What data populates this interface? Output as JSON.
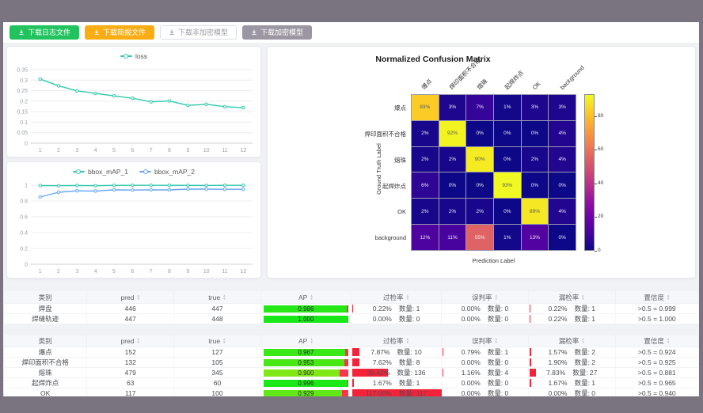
{
  "toolbar": {
    "buttons": [
      {
        "label": "下载日志文件",
        "style": "green"
      },
      {
        "label": "下载简报文件",
        "style": "orange"
      },
      {
        "label": "下载非加密模型",
        "style": "plain"
      },
      {
        "label": "下载加密模型",
        "style": "gray"
      }
    ]
  },
  "colors": {
    "frame": "#7a7481",
    "teal_series": "#30c9ac",
    "blue_series": "#64a6f4",
    "green_button": "#22c35e",
    "orange_button": "#f9ad13",
    "red_bar": "#f5233a"
  },
  "charts": {
    "loss": {
      "type": "line",
      "x": [
        "1",
        "2",
        "3",
        "4",
        "5",
        "6",
        "7",
        "8",
        "9",
        "10",
        "11",
        "12"
      ],
      "yticks": [
        0,
        0.05,
        0.1,
        0.15,
        0.2,
        0.25,
        0.3,
        0.35
      ],
      "ymax": 0.35,
      "series": [
        {
          "name": "loss",
          "color": "#30c9ac",
          "values": [
            0.305,
            0.273,
            0.249,
            0.237,
            0.225,
            0.214,
            0.197,
            0.201,
            0.18,
            0.185,
            0.174,
            0.169
          ]
        }
      ]
    },
    "map": {
      "type": "line",
      "x": [
        "1",
        "2",
        "3",
        "4",
        "5",
        "6",
        "7",
        "8",
        "9",
        "10",
        "11",
        "12"
      ],
      "yticks": [
        0,
        0.2,
        0.4,
        0.6,
        0.8,
        1
      ],
      "ymax": 1,
      "series": [
        {
          "name": "bbox_mAP_1",
          "color": "#30c9ac",
          "values": [
            0.995,
            0.993,
            0.996,
            0.993,
            0.997,
            0.998,
            0.998,
            0.998,
            0.997,
            0.996,
            0.998,
            0.998
          ]
        },
        {
          "name": "bbox_mAP_2",
          "color": "#64a6f4",
          "values": [
            0.85,
            0.91,
            0.928,
            0.925,
            0.94,
            0.938,
            0.94,
            0.94,
            0.95,
            0.95,
            0.948,
            0.948
          ]
        }
      ]
    },
    "confusion": {
      "type": "heatmap",
      "title": "Normalized Confusion Matrix",
      "xlabel": "Prediction Label",
      "ylabel": "Ground Truth Label",
      "labels": [
        "爆点",
        "焊印面积不合格",
        "熔珠",
        "起焊炸点",
        "OK",
        "background"
      ],
      "unit": "%",
      "vmax": 93,
      "colorbar_ticks": [
        0,
        20,
        40,
        60,
        80
      ],
      "rows": [
        [
          83,
          3,
          7,
          1,
          3,
          3
        ],
        [
          2,
          92,
          0,
          0,
          0,
          4
        ],
        [
          2,
          2,
          90,
          0,
          2,
          4
        ],
        [
          6,
          0,
          0,
          93,
          0,
          0
        ],
        [
          2,
          2,
          2,
          0,
          89,
          4
        ],
        [
          12,
          11,
          55,
          1,
          13,
          0
        ]
      ]
    }
  },
  "tables": {
    "columns": [
      {
        "label": "类别",
        "key": "name",
        "sortable": false
      },
      {
        "label": "pred",
        "key": "pred",
        "sortable": true
      },
      {
        "label": "true",
        "key": "true",
        "sortable": true
      },
      {
        "label": "AP",
        "key": "ap",
        "sortable": true
      },
      {
        "label": "过检率",
        "key": "over",
        "sortable": true
      },
      {
        "label": "误判率",
        "key": "mis",
        "sortable": true
      },
      {
        "label": "漏检率",
        "key": "miss",
        "sortable": true
      },
      {
        "label": "置信度",
        "key": "conf",
        "sortable": true
      }
    ],
    "table1": {
      "rows": [
        {
          "name": "焊盘",
          "pred": "446",
          "true": "447",
          "ap": 0.986,
          "ap_label": "0.986",
          "over": {
            "pct": "0.22%",
            "num": "数量: 1",
            "val": 0.22
          },
          "mis": {
            "pct": "0.00%",
            "num": "数量: 0",
            "val": 0
          },
          "miss": {
            "pct": "0.22%",
            "num": "数量: 1",
            "val": 0.22
          },
          "conf": ">0.5 = 0.999"
        },
        {
          "name": "焊缝轨迹",
          "pred": "447",
          "true": "448",
          "ap": 1.0,
          "ap_label": "1.000",
          "over": {
            "pct": "0.00%",
            "num": "数量: 0",
            "val": 0
          },
          "mis": {
            "pct": "0.00%",
            "num": "数量: 0",
            "val": 0
          },
          "miss": {
            "pct": "0.22%",
            "num": "数量: 1",
            "val": 0.22
          },
          "conf": ">0.5 = 1.000"
        }
      ]
    },
    "table2": {
      "rows": [
        {
          "name": "爆点",
          "pred": "152",
          "true": "127",
          "ap": 0.967,
          "ap_label": "0.967",
          "over": {
            "pct": "7.87%",
            "num": "数量: 10",
            "val": 7.87
          },
          "mis": {
            "pct": "0.79%",
            "num": "数量: 1",
            "val": 0.79
          },
          "miss": {
            "pct": "1.57%",
            "num": "数量: 2",
            "val": 1.57
          },
          "conf": ">0.5 = 0.924"
        },
        {
          "name": "焊印面积不合格",
          "pred": "132",
          "true": "105",
          "ap": 0.953,
          "ap_label": "0.953",
          "over": {
            "pct": "7.62%",
            "num": "数量: 8",
            "val": 7.62
          },
          "mis": {
            "pct": "0.00%",
            "num": "数量: 0",
            "val": 0
          },
          "miss": {
            "pct": "1.90%",
            "num": "数量: 2",
            "val": 1.9
          },
          "conf": ">0.5 = 0.925"
        },
        {
          "name": "熔珠",
          "pred": "479",
          "true": "345",
          "ap": 0.9,
          "ap_label": "0.900",
          "over": {
            "pct": "39.42%",
            "num": "数量: 136",
            "val": 39.42
          },
          "mis": {
            "pct": "1.16%",
            "num": "数量: 4",
            "val": 1.16
          },
          "miss": {
            "pct": "7.83%",
            "num": "数量: 27",
            "val": 7.83
          },
          "conf": ">0.5 = 0.881"
        },
        {
          "name": "起焊炸点",
          "pred": "63",
          "true": "60",
          "ap": 0.996,
          "ap_label": "0.996",
          "over": {
            "pct": "1.67%",
            "num": "数量: 1",
            "val": 1.67
          },
          "mis": {
            "pct": "0.00%",
            "num": "数量: 0",
            "val": 0
          },
          "miss": {
            "pct": "1.67%",
            "num": "数量: 1",
            "val": 1.67
          },
          "conf": ">0.5 = 0.965"
        },
        {
          "name": "OK",
          "pred": "117",
          "true": "100",
          "ap": 0.929,
          "ap_label": "0.929",
          "over": {
            "pct": "117.00%",
            "num": "数量: 117",
            "val": 117
          },
          "mis": {
            "pct": "0.00%",
            "num": "数量: 0",
            "val": 0
          },
          "miss": {
            "pct": "0.00%",
            "num": "数量: 0",
            "val": 0
          },
          "conf": ">0.5 = 0.940"
        }
      ]
    }
  }
}
